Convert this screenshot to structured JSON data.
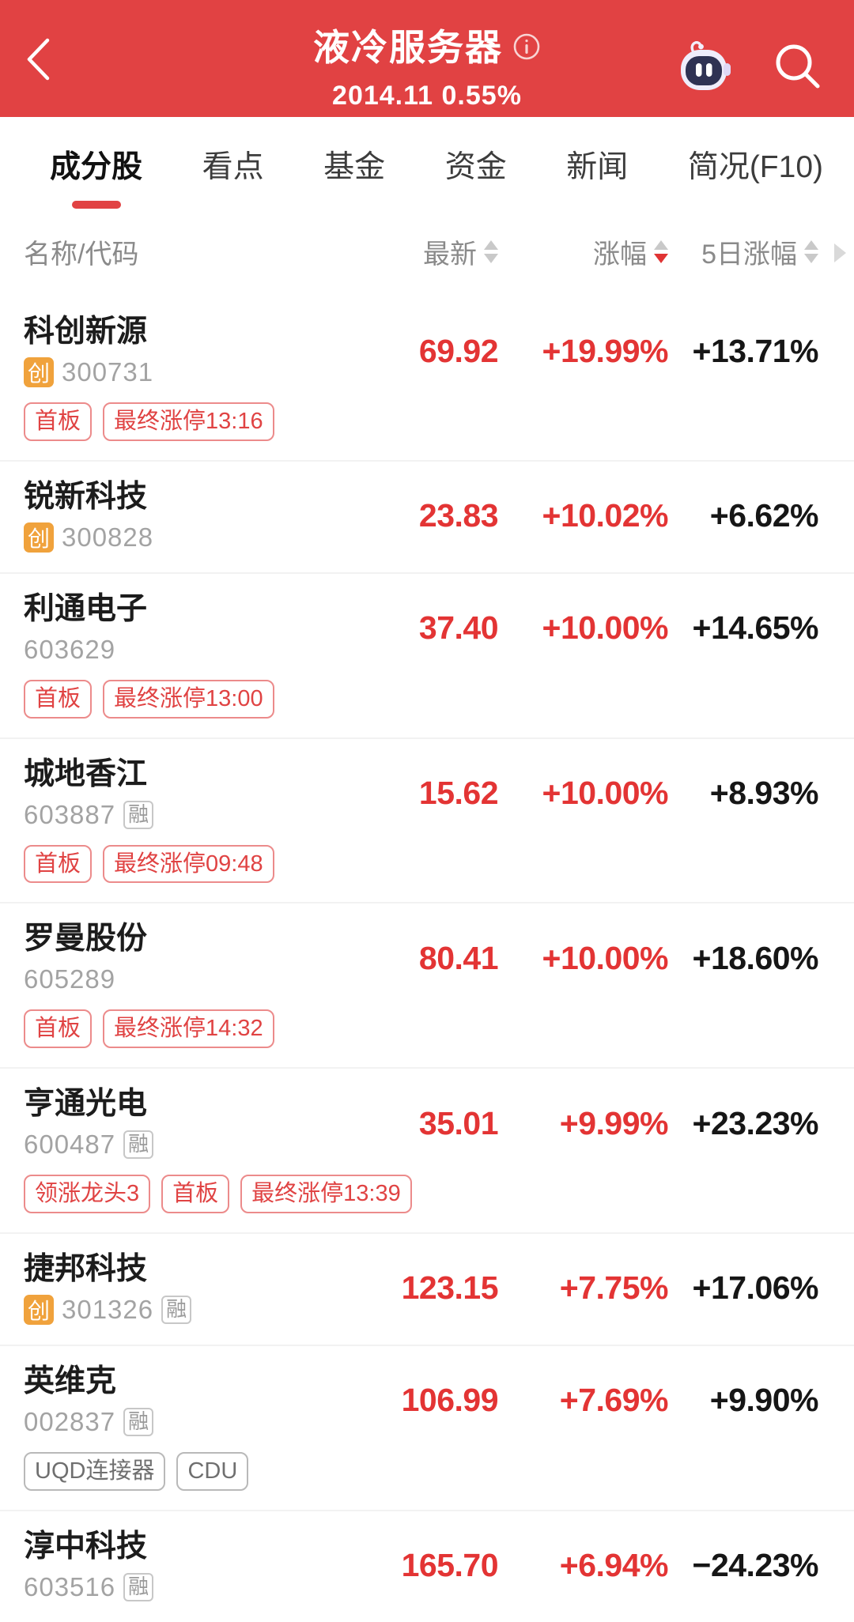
{
  "header": {
    "title": "液冷服务器",
    "subtitle": "2014.11 0.55%"
  },
  "tabs": [
    {
      "label": "成分股",
      "active": true
    },
    {
      "label": "看点",
      "active": false
    },
    {
      "label": "基金",
      "active": false
    },
    {
      "label": "资金",
      "active": false
    },
    {
      "label": "新闻",
      "active": false
    },
    {
      "label": "简况(F10)",
      "active": false
    }
  ],
  "table": {
    "name_header": "名称/代码",
    "columns": [
      {
        "label": "最新",
        "sort": "none"
      },
      {
        "label": "涨幅",
        "sort": "desc"
      },
      {
        "label": "5日涨幅",
        "sort": "none"
      }
    ]
  },
  "badges": {
    "gem": "创",
    "margin": "融"
  },
  "stocks": [
    {
      "name": "科创新源",
      "gem": true,
      "code": "300731",
      "margin": false,
      "price": "69.92",
      "change": "+19.99%",
      "change5": "+13.71%",
      "tags": [
        {
          "label": "首板",
          "color": "red"
        },
        {
          "label": "最终涨停13:16",
          "color": "red"
        }
      ]
    },
    {
      "name": "锐新科技",
      "gem": true,
      "code": "300828",
      "margin": false,
      "price": "23.83",
      "change": "+10.02%",
      "change5": "+6.62%",
      "tags": []
    },
    {
      "name": "利通电子",
      "gem": false,
      "code": "603629",
      "margin": false,
      "price": "37.40",
      "change": "+10.00%",
      "change5": "+14.65%",
      "tags": [
        {
          "label": "首板",
          "color": "red"
        },
        {
          "label": "最终涨停13:00",
          "color": "red"
        }
      ]
    },
    {
      "name": "城地香江",
      "gem": false,
      "code": "603887",
      "margin": true,
      "price": "15.62",
      "change": "+10.00%",
      "change5": "+8.93%",
      "tags": [
        {
          "label": "首板",
          "color": "red"
        },
        {
          "label": "最终涨停09:48",
          "color": "red"
        }
      ]
    },
    {
      "name": "罗曼股份",
      "gem": false,
      "code": "605289",
      "margin": false,
      "price": "80.41",
      "change": "+10.00%",
      "change5": "+18.60%",
      "tags": [
        {
          "label": "首板",
          "color": "red"
        },
        {
          "label": "最终涨停14:32",
          "color": "red"
        }
      ]
    },
    {
      "name": "亨通光电",
      "gem": false,
      "code": "600487",
      "margin": true,
      "price": "35.01",
      "change": "+9.99%",
      "change5": "+23.23%",
      "tags": [
        {
          "label": "领涨龙头3",
          "color": "red"
        },
        {
          "label": "首板",
          "color": "red"
        },
        {
          "label": "最终涨停13:39",
          "color": "red"
        }
      ]
    },
    {
      "name": "捷邦科技",
      "gem": true,
      "code": "301326",
      "margin": true,
      "price": "123.15",
      "change": "+7.75%",
      "change5": "+17.06%",
      "tags": []
    },
    {
      "name": "英维克",
      "gem": false,
      "code": "002837",
      "margin": true,
      "price": "106.99",
      "change": "+7.69%",
      "change5": "+9.90%",
      "tags": [
        {
          "label": "UQD连接器",
          "color": "gray"
        },
        {
          "label": "CDU",
          "color": "gray"
        }
      ]
    },
    {
      "name": "淳中科技",
      "gem": false,
      "code": "603516",
      "margin": true,
      "price": "165.70",
      "change": "+6.94%",
      "change5": "−24.23%",
      "tags": []
    }
  ],
  "colors": {
    "accent": "#E14243",
    "up_red": "#E33434",
    "neutral_dark": "#161616",
    "gem_badge": "#F0A23C"
  }
}
